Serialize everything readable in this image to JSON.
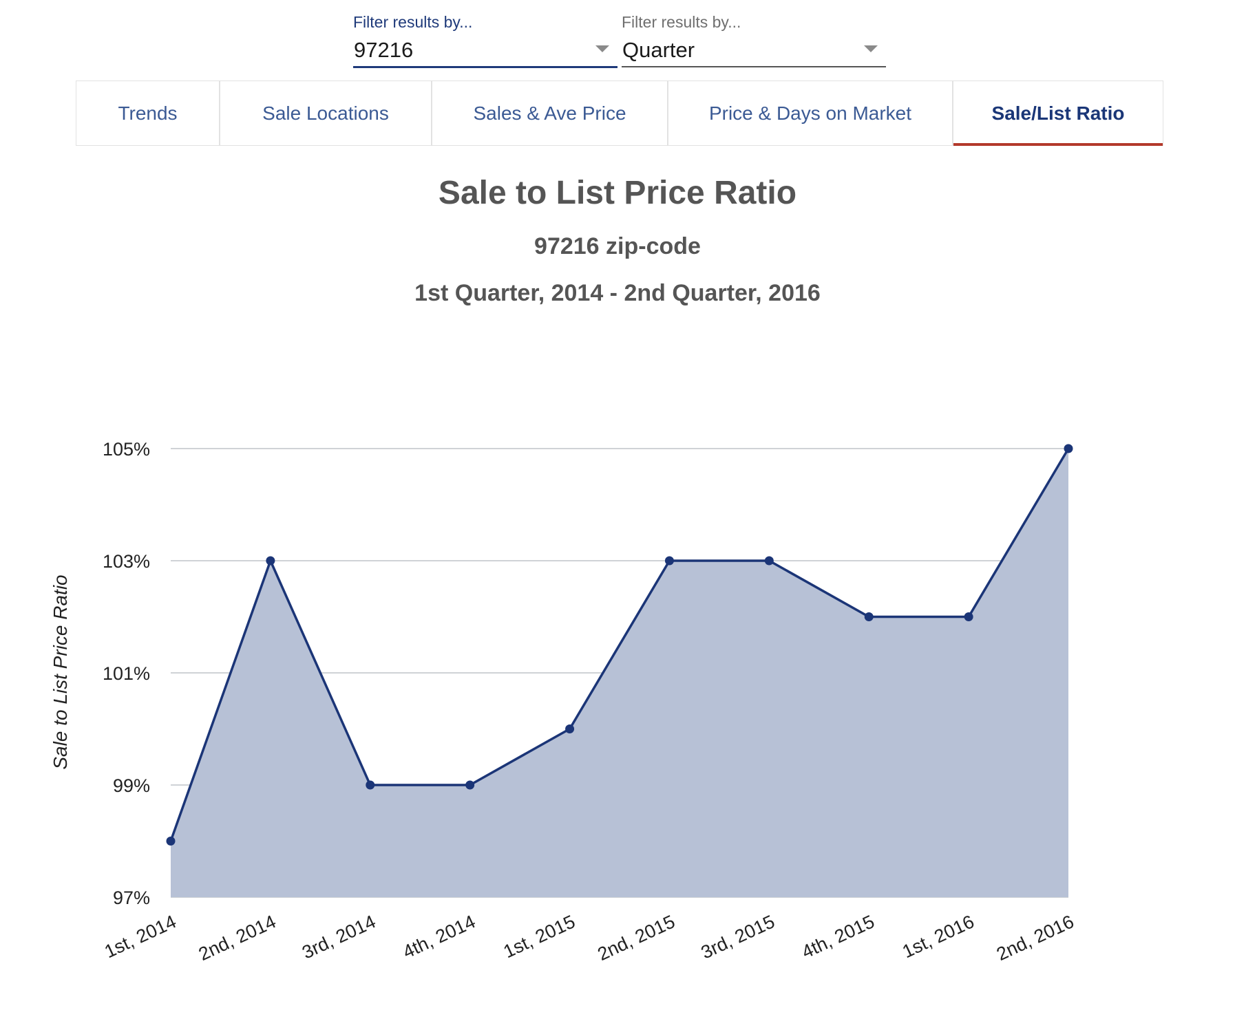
{
  "filters": [
    {
      "label": "Filter results by...",
      "value": "97216",
      "active": true
    },
    {
      "label": "Filter results by...",
      "value": "Quarter",
      "active": false
    }
  ],
  "tabs": [
    {
      "label": "Trends",
      "active": false
    },
    {
      "label": "Sale Locations",
      "active": false
    },
    {
      "label": "Sales & Ave Price",
      "active": false
    },
    {
      "label": "Price & Days on Market",
      "active": false
    },
    {
      "label": "Sale/List Ratio",
      "active": true
    }
  ],
  "colors": {
    "series_line": "#1b3577",
    "series_fill": "#b7c1d6",
    "active_tab_underline": "#b3392b"
  },
  "chart_data": {
    "type": "area",
    "title": "Sale to List Price Ratio",
    "subtitle": "97216 zip-code",
    "period": "1st Quarter, 2014 - 2nd Quarter, 2016",
    "ylabel": "Sale to List Price Ratio",
    "categories": [
      "1st, 2014",
      "2nd, 2014",
      "3rd, 2014",
      "4th, 2014",
      "1st, 2015",
      "2nd, 2015",
      "3rd, 2015",
      "4th, 2015",
      "1st, 2016",
      "2nd, 2016"
    ],
    "values": [
      98,
      103,
      99,
      99,
      100,
      103,
      103,
      102,
      102,
      105
    ],
    "ylim": [
      97,
      105
    ],
    "yticks": [
      97,
      99,
      101,
      103,
      105
    ],
    "ytick_labels": [
      "97%",
      "99%",
      "101%",
      "103%",
      "105%"
    ],
    "grid": true,
    "legend": false
  }
}
